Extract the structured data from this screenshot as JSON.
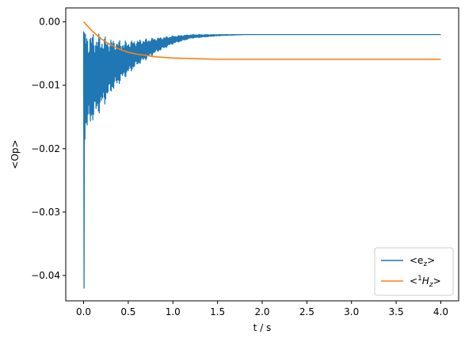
{
  "chart_data": {
    "type": "line",
    "xlabel": "t / s",
    "ylabel": "<Op>",
    "xlim": [
      -0.2,
      4.2
    ],
    "ylim": [
      -0.044,
      0.0022
    ],
    "x_ticks": [
      0.0,
      0.5,
      1.0,
      1.5,
      2.0,
      2.5,
      3.0,
      3.5,
      4.0
    ],
    "x_tick_labels": [
      "0.0",
      "0.5",
      "1.0",
      "1.5",
      "2.0",
      "2.5",
      "3.0",
      "3.5",
      "4.0"
    ],
    "y_ticks": [
      0.0,
      -0.01,
      -0.02,
      -0.03,
      -0.04
    ],
    "y_tick_labels": [
      "0.00",
      "−0.01",
      "−0.02",
      "−0.03",
      "−0.04"
    ],
    "grid": false,
    "legend_position": "bottom-right",
    "series": [
      {
        "name_prefix": "<e",
        "name_sub": "z",
        "name_suffix": ">",
        "color": "#1f77b4",
        "description": "oscillating expectation value, damped",
        "x": [
          0.0,
          0.005,
          0.01,
          0.015,
          0.02,
          0.05,
          0.1,
          0.2,
          0.3,
          0.5,
          0.75,
          1.0,
          1.5,
          2.0,
          3.0,
          4.0
        ],
        "y": [
          -0.0015,
          -0.042,
          -0.0018,
          -0.0185,
          -0.002,
          -0.016,
          -0.014,
          -0.012,
          -0.009,
          -0.007,
          -0.005,
          -0.0035,
          -0.0022,
          -0.002,
          -0.002,
          -0.002
        ],
        "envelope_upper": [
          -0.0012,
          -0.0015,
          -0.002,
          -0.0025,
          -0.003,
          -0.0028,
          -0.0025,
          -0.0022,
          -0.002,
          -0.002,
          -0.002
        ],
        "envelope_lower": [
          -0.0185,
          -0.016,
          -0.014,
          -0.0115,
          -0.009,
          -0.007,
          -0.005,
          -0.0035,
          -0.0026,
          -0.0022,
          -0.002
        ],
        "envelope_x": [
          0.0,
          0.1,
          0.2,
          0.3,
          0.45,
          0.6,
          0.8,
          1.0,
          1.2,
          1.5,
          1.8
        ],
        "final_value": -0.002
      },
      {
        "name_prefix": "<",
        "name_sup": "1",
        "name_main": "H",
        "name_sub": "z",
        "name_suffix": ">",
        "color": "#ff7f0e",
        "x": [
          0.0,
          0.1,
          0.2,
          0.3,
          0.4,
          0.5,
          0.6,
          0.8,
          1.0,
          1.25,
          1.5,
          2.0,
          2.5,
          3.0,
          3.5,
          4.0
        ],
        "y": [
          0.0,
          -0.0015,
          -0.0027,
          -0.0036,
          -0.0043,
          -0.0048,
          -0.0051,
          -0.0055,
          -0.0057,
          -0.0058,
          -0.0059,
          -0.0059,
          -0.0059,
          -0.0059,
          -0.0059,
          -0.0059
        ]
      }
    ]
  }
}
